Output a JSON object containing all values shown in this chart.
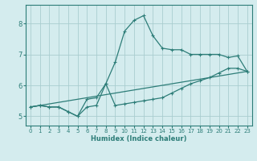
{
  "xlabel": "Humidex (Indice chaleur)",
  "ylabel": "",
  "background_color": "#d4ecee",
  "grid_color": "#aacdd0",
  "line_color": "#2d7d78",
  "xlim": [
    -0.5,
    23.5
  ],
  "ylim": [
    4.7,
    8.6
  ],
  "xticks": [
    0,
    1,
    2,
    3,
    4,
    5,
    6,
    7,
    8,
    9,
    10,
    11,
    12,
    13,
    14,
    15,
    16,
    17,
    18,
    19,
    20,
    21,
    22,
    23
  ],
  "yticks": [
    5,
    6,
    7,
    8
  ],
  "line1_x": [
    0,
    1,
    2,
    3,
    4,
    5,
    6,
    7,
    8,
    9,
    10,
    11,
    12,
    13,
    14,
    15,
    16,
    17,
    18,
    19,
    20,
    21,
    22,
    23
  ],
  "line1_y": [
    5.3,
    5.35,
    5.3,
    5.3,
    5.15,
    5.0,
    5.3,
    5.35,
    6.05,
    6.75,
    7.75,
    8.1,
    8.25,
    7.6,
    7.2,
    7.15,
    7.15,
    7.0,
    7.0,
    7.0,
    7.0,
    6.9,
    6.95,
    6.45
  ],
  "line2_x": [
    0,
    1,
    2,
    3,
    4,
    5,
    6,
    7,
    8,
    9,
    10,
    11,
    12,
    13,
    14,
    15,
    16,
    17,
    18,
    19,
    20,
    21,
    22,
    23
  ],
  "line2_y": [
    5.3,
    5.35,
    5.3,
    5.3,
    5.15,
    5.0,
    5.55,
    5.6,
    6.05,
    5.35,
    5.4,
    5.45,
    5.5,
    5.55,
    5.6,
    5.75,
    5.9,
    6.05,
    6.15,
    6.25,
    6.4,
    6.55,
    6.55,
    6.45
  ],
  "line3_x": [
    0,
    23
  ],
  "line3_y": [
    5.3,
    6.45
  ]
}
